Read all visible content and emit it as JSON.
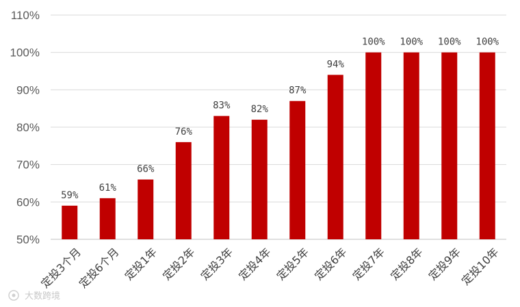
{
  "chart_data": {
    "type": "bar",
    "categories": [
      "定投3个月",
      "定投6个月",
      "定投1年",
      "定投2年",
      "定投3年",
      "定投4年",
      "定投5年",
      "定投6年",
      "定投7年",
      "定投8年",
      "定投9年",
      "定投10年"
    ],
    "values": [
      59,
      61,
      66,
      76,
      83,
      82,
      87,
      94,
      100,
      100,
      100,
      100
    ],
    "data_labels": [
      "59%",
      "61%",
      "66%",
      "76%",
      "83%",
      "82%",
      "87%",
      "94%",
      "100%",
      "100%",
      "100%",
      "100%"
    ],
    "yticks": [
      "50%",
      "60%",
      "70%",
      "80%",
      "90%",
      "100%",
      "110%"
    ],
    "ylim": [
      50,
      110
    ],
    "ystep": 10,
    "title": "",
    "xlabel": "",
    "ylabel": "",
    "grid": true,
    "bar_color": "#c00000",
    "grid_color": "#d9d9d9"
  },
  "watermark": {
    "text": "大数跨境"
  }
}
